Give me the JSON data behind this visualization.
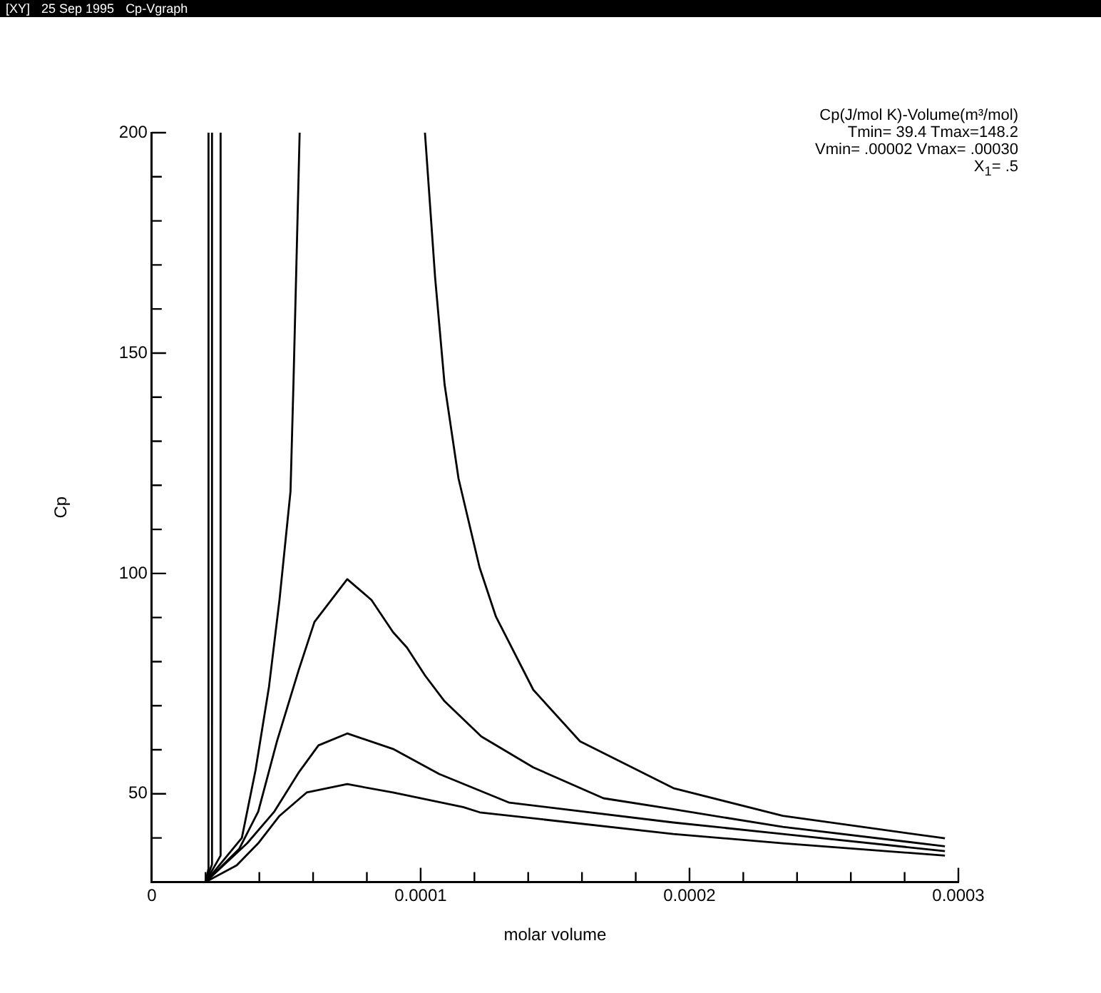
{
  "chart_data": {
    "type": "line",
    "xlabel": "molar volume",
    "ylabel": "Cp",
    "annotations": [
      "[XY]",
      "25 Sep 1995",
      "Cp-Vgraph",
      "Cp(J/mol K)-Volume(m³/mol)",
      "Tmin= 39.4 Tmax=148.2",
      "Vmin= .00002 Vmax= .00030",
      "X$_{1}$= .5"
    ],
    "xlim": [
      0,
      0.0003
    ],
    "xticks": [
      0,
      {
        "value": 2e-05,
        "label": null
      },
      {
        "value": 4e-05,
        "label": null
      },
      {
        "value": 6e-05,
        "label": null
      },
      {
        "value": 8e-05,
        "label": null
      },
      0.0001,
      {
        "value": 0.00012,
        "label": null
      },
      {
        "value": 0.00014,
        "label": null
      },
      {
        "value": 0.00016,
        "label": null
      },
      {
        "value": 0.00018,
        "label": null
      },
      0.0002,
      {
        "value": 0.00022,
        "label": null
      },
      {
        "value": 0.00024,
        "label": null
      },
      {
        "value": 0.00026,
        "label": null
      },
      {
        "value": 0.00028,
        "label": null
      },
      0.0003
    ],
    "ylim": [
      30,
      200
    ],
    "yticks": [
      {
        "value": 30,
        "label": null
      },
      {
        "value": 40,
        "label": null
      },
      50,
      {
        "value": 60,
        "label": null
      },
      {
        "value": 70,
        "label": null
      },
      {
        "value": 80,
        "label": null
      },
      {
        "value": 90,
        "label": null
      },
      100,
      {
        "value": 110,
        "label": null
      },
      {
        "value": 120,
        "label": null
      },
      {
        "value": 130,
        "label": null
      },
      {
        "value": 140,
        "label": null
      },
      150,
      {
        "value": 160,
        "label": null
      },
      {
        "value": 170,
        "label": null
      },
      {
        "value": 180,
        "label": null
      },
      {
        "value": 190,
        "label": null
      },
      200
    ],
    "grid": false,
    "legend": false,
    "marker": "none",
    "line_style": "solid",
    "series": [
      {
        "color": "#000000",
        "x": [
          2e-05,
          2.11e-05,
          2.11e-05
        ],
        "values": [
          30,
          33,
          200
        ]
      },
      {
        "color": "#000000",
        "x": [
          2e-05,
          2.24e-05,
          2.24e-05
        ],
        "values": [
          30,
          34,
          200
        ]
      },
      {
        "color": "#000000",
        "x": [
          2e-05,
          2.56e-05,
          2.56e-05
        ],
        "values": [
          30,
          36,
          200
        ]
      },
      {
        "color": "#000000",
        "x": [
          2e-05,
          3.35e-05,
          3.86e-05,
          4.36e-05,
          4.75e-05,
          5.16e-05,
          5.27e-05,
          5.37e-05,
          5.5e-05
        ],
        "values": [
          30,
          40,
          55.4,
          74.3,
          94,
          118.6,
          143.2,
          167.8,
          200
        ]
      },
      {
        "color": "#000000",
        "x": [
          0.0001016,
          0.0001054,
          0.0001089,
          0.0001141,
          0.0001219,
          0.000128,
          0.0001419,
          0.0001593,
          0.000194,
          0.0002347,
          0.000295
        ],
        "values": [
          200,
          167,
          142.9,
          121.5,
          101.4,
          90.2,
          73.6,
          61.9,
          51.3,
          45,
          39.9
        ]
      },
      {
        "color": "#000000",
        "x": [
          2e-05,
          3.25e-05,
          3.96e-05,
          4.66e-05,
          5.46e-05,
          6.05e-05,
          7.27e-05,
          8.17e-05,
          8.97e-05,
          9.49e-05,
          0.0001017,
          0.0001089,
          0.0001226,
          0.0001419,
          0.000168,
          0.000194,
          0.0002347,
          0.000295
        ],
        "values": [
          30,
          37.5,
          46,
          62,
          78,
          89,
          98.7,
          94,
          86.7,
          83.2,
          76.8,
          71,
          63,
          56,
          49,
          46.5,
          42.5,
          38.1
        ]
      },
      {
        "color": "#000000",
        "x": [
          2e-05,
          3.55e-05,
          4.56e-05,
          5.46e-05,
          6.2e-05,
          7.27e-05,
          8.97e-05,
          0.0001069,
          0.000133,
          0.000194,
          0.0002347,
          0.000295
        ],
        "values": [
          30,
          38.8,
          46,
          54.8,
          61,
          63.7,
          60.2,
          54.5,
          48,
          43.5,
          40.9,
          37
        ]
      },
      {
        "color": "#000000",
        "x": [
          2e-05,
          3.16e-05,
          3.96e-05,
          4.75e-05,
          5.76e-05,
          7.27e-05,
          8.97e-05,
          0.0001158,
          0.000122,
          0.000194,
          0.0002347,
          0.000295
        ],
        "values": [
          30,
          33.8,
          38.8,
          45,
          50.3,
          52.2,
          50.3,
          47,
          45.8,
          40.9,
          38.8,
          36
        ]
      }
    ]
  }
}
